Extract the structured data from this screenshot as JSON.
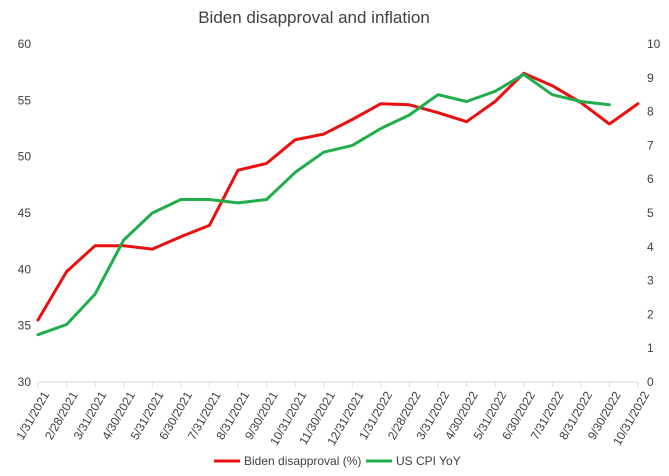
{
  "chart_data": {
    "type": "line",
    "title": "Biden disapproval and inflation",
    "xlabel": "",
    "ylabel": "",
    "categories": [
      "1/31/2021",
      "2/28/2021",
      "3/31/2021",
      "4/30/2021",
      "5/31/2021",
      "6/30/2021",
      "7/31/2021",
      "8/31/2021",
      "9/30/2021",
      "10/31/2021",
      "11/30/2021",
      "12/31/2021",
      "1/31/2022",
      "2/28/2022",
      "3/31/2022",
      "4/30/2022",
      "5/31/2022",
      "6/30/2022",
      "7/31/2022",
      "8/31/2022",
      "9/30/2022",
      "10/31/2022"
    ],
    "ylim_left": [
      30,
      60
    ],
    "yticks_left": [
      "30",
      "35",
      "40",
      "45",
      "50",
      "55",
      "60"
    ],
    "ylim_right": [
      0,
      10
    ],
    "yticks_right": [
      "0",
      "1",
      "2",
      "3",
      "4",
      "5",
      "6",
      "7",
      "8",
      "9",
      "10"
    ],
    "legend_position": "bottom",
    "grid": false,
    "series": [
      {
        "name": "Biden disapproval (%)",
        "axis": "left",
        "color": "#e81010",
        "values": [
          35.5,
          39.8,
          42.1,
          42.1,
          41.8,
          42.9,
          43.9,
          48.8,
          49.4,
          51.5,
          52.0,
          53.3,
          54.7,
          54.6,
          53.9,
          53.1,
          54.9,
          57.4,
          56.3,
          54.8,
          52.9,
          54.7
        ]
      },
      {
        "name": "US CPI YoY",
        "axis": "right",
        "color": "#1fae4b",
        "values": [
          1.4,
          1.7,
          2.6,
          4.2,
          5.0,
          5.4,
          5.4,
          5.3,
          5.4,
          6.2,
          6.8,
          7.0,
          7.5,
          7.9,
          8.5,
          8.3,
          8.6,
          9.1,
          8.5,
          8.3,
          8.2,
          null
        ]
      }
    ]
  }
}
